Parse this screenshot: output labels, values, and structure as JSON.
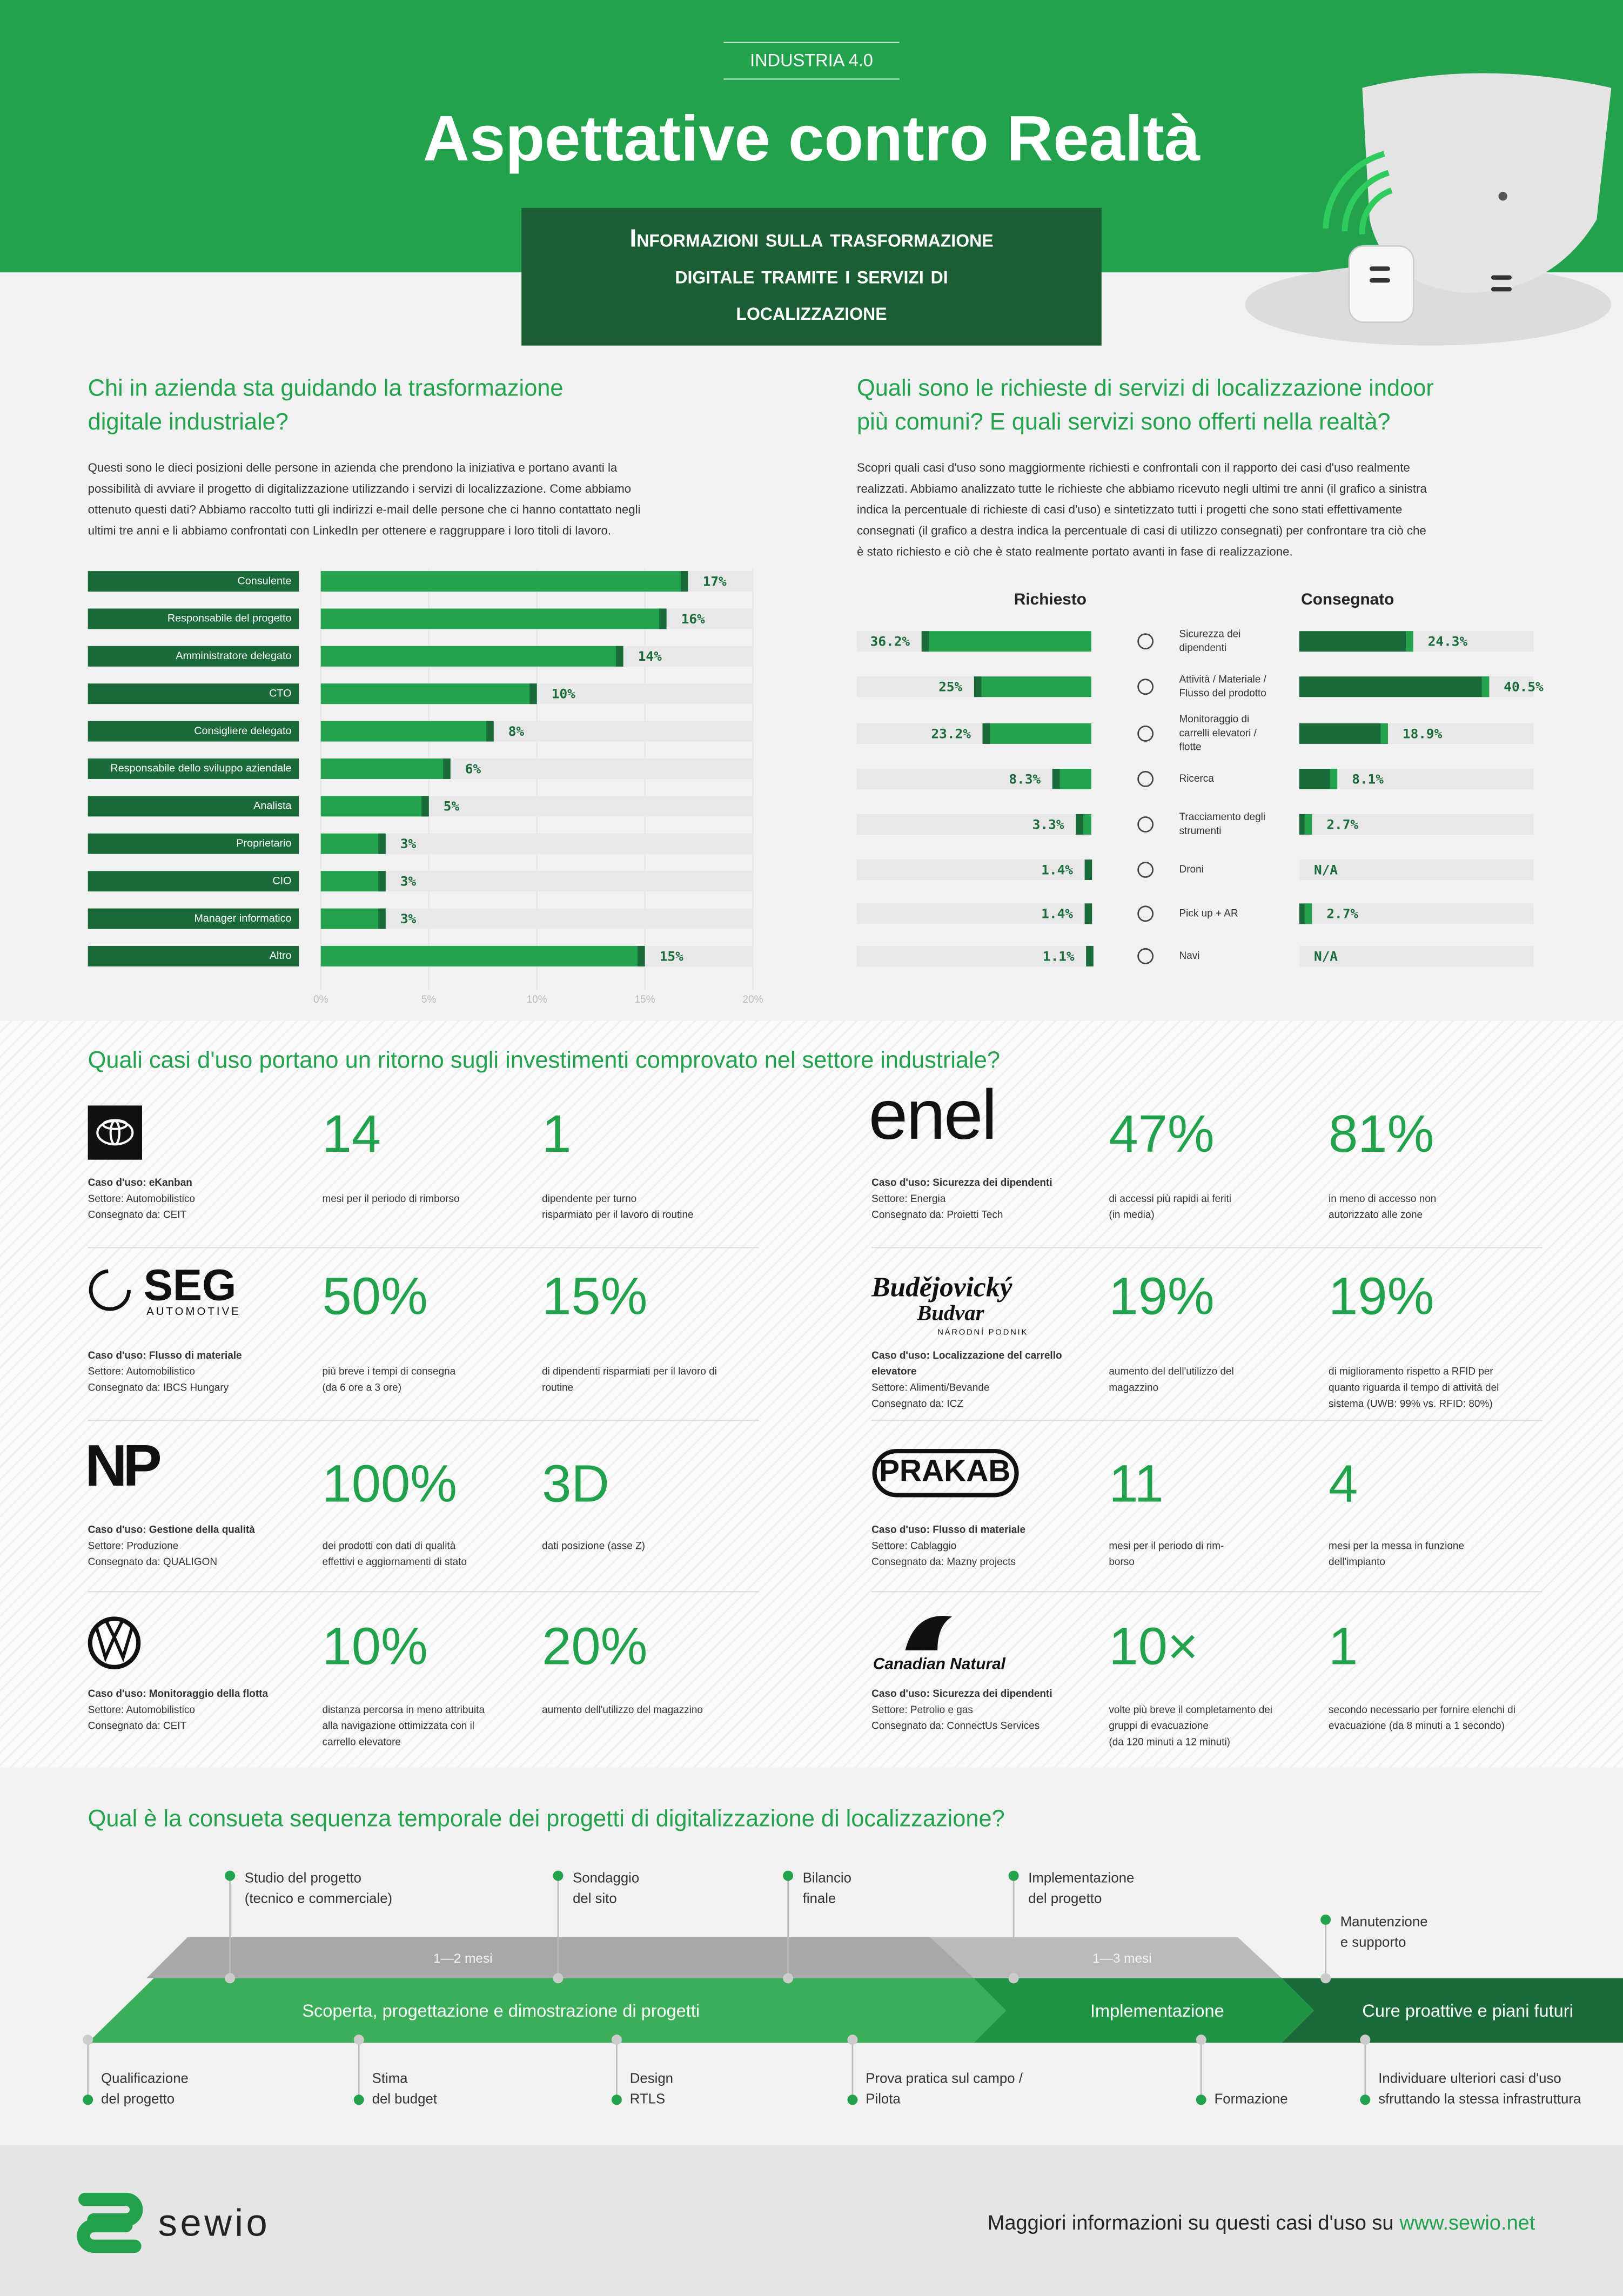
{
  "header": {
    "kicker": "INDUSTRIA 4.0",
    "title": "Aspettative contro Realtà",
    "subtitle": [
      "Informazioni sulla trasformazione",
      "digitale tramite i servizi di",
      "localizzazione"
    ]
  },
  "roles": {
    "title": [
      "Chi in azienda sta guidando la trasformazione",
      "digitale industriale?"
    ],
    "text": [
      "Questi sono le dieci posizioni delle persone in azienda che prendono la iniziativa e portano avanti la",
      "possibilità di avviare il progetto di digitalizzazione utilizzando i servizi di localizzazione. Come abbiamo",
      "ottenuto questi dati? Abbiamo raccolto tutti gli indirizzi e-mail delle persone che ci hanno contattato negli",
      "ultimi tre anni e li abbiamo confrontati con LinkedIn per ottenere e raggruppare i loro titoli di lavoro."
    ]
  },
  "use_cases": {
    "title": [
      "Quali sono le richieste di servizi di localizzazione indoor",
      "più comuni? E quali servizi sono offerti nella realtà?"
    ],
    "text": [
      "Scopri quali casi d'uso sono maggiormente richiesti e confrontali con il rapporto dei casi d'uso realmente",
      "realizzati. Abbiamo analizzato tutte le richieste che abbiamo ricevuto negli ultimi tre anni (il grafico a sinistra",
      "indica la percentuale di richieste di casi d'uso) e sintetizzato tutti i progetti che sono stati effettivamente",
      "consegnati (il grafico a destra indica la percentuale di casi di utilizzo consegnati) per confrontare tra ciò che",
      "è stato richiesto e ciò che è stato realmente portato avanti in fase di realizzazione."
    ]
  },
  "chart_data": [
    {
      "type": "bar",
      "categories": [
        "Consulente",
        "Responsabile del progetto",
        "Amministratore delegato",
        "CTO",
        "Consigliere delegato",
        "Responsabile dello sviluppo aziendale",
        "Analista",
        "Proprietario",
        "CIO",
        "Manager informatico",
        "Altro"
      ],
      "values": [
        17,
        16,
        14,
        10,
        8,
        6,
        5,
        3,
        3,
        3,
        15
      ],
      "value_labels": [
        "17%",
        "16%",
        "14%",
        "10%",
        "8%",
        "6%",
        "5%",
        "3%",
        "3%",
        "3%",
        "15%"
      ],
      "color": "#23a24d",
      "xlim": [
        0,
        20
      ],
      "xticks": [
        {
          "value": 0,
          "label": "0%"
        },
        {
          "value": 5,
          "label": "5%"
        },
        {
          "value": 10,
          "label": "10%"
        },
        {
          "value": 15,
          "label": "15%"
        },
        {
          "value": 20,
          "label": "20%"
        }
      ],
      "grid": true
    },
    {
      "type": "bar",
      "categories": [
        "Sicurezza dei dipendenti",
        "Attività / Materiale / Flusso del prodotto",
        "Monitoraggio di carrelli elevatori / flotte",
        "Ricerca",
        "Tracciamento degli strumenti",
        "Droni",
        "Pick up + AR",
        "Navi"
      ],
      "series": [
        {
          "name": "Richiesto",
          "color": "#23a24d",
          "values": [
            36.2,
            25,
            23.2,
            8.3,
            3.3,
            1.4,
            1.4,
            1.1
          ],
          "value_labels": [
            "36.2%",
            "25%",
            "23.2%",
            "8.3%",
            "3.3%",
            "1.4%",
            "1.4%",
            "1.1%"
          ]
        },
        {
          "name": "Consegnato",
          "color": "#1b6b3a",
          "values": [
            24.3,
            40.5,
            18.9,
            8.1,
            2.7,
            null,
            2.7,
            null
          ],
          "value_labels": [
            "24.3%",
            "40.5%",
            "18.9%",
            "8.1%",
            "2.7%",
            "N/A",
            "2.7%",
            "N/A"
          ]
        }
      ],
      "xlim": [
        0,
        50
      ]
    }
  ],
  "roi": {
    "title": "Quali casi d'uso portano un ritorno sugli investimenti comprovato nel settore industriale?",
    "cases": [
      {
        "case": [
          "Caso d'uso: eKanban"
        ],
        "sector": "Settore: Automobilistico",
        "delivered_by": "Consegnato da: CEIT",
        "stats": [
          {
            "value": "14",
            "text": [
              "mesi per il periodo di rimborso"
            ]
          },
          {
            "value": "1",
            "text": [
              "dipendente per turno",
              "risparmiato per il lavoro di routine"
            ]
          }
        ]
      },
      {
        "logo": [
          "SEG",
          "AUTOMOTIVE"
        ],
        "case": [
          "Caso d'uso: Flusso di materiale"
        ],
        "sector": "Settore: Automobilistico",
        "delivered_by": "Consegnato da: IBCS Hungary",
        "stats": [
          {
            "value": "50%",
            "text": [
              "più breve i tempi di consegna",
              "(da 6 ore a 3 ore)"
            ]
          },
          {
            "value": "15%",
            "text": [
              "di dipendenti risparmiati per il lavoro di",
              "routine"
            ]
          }
        ]
      },
      {
        "logo": [
          "NP"
        ],
        "case": [
          "Caso d'uso: Gestione della qualità"
        ],
        "sector": "Settore: Produzione",
        "delivered_by": "Consegnato da: QUALIGON",
        "stats": [
          {
            "value": "100%",
            "text": [
              "dei prodotti con dati di qualità",
              "effettivi e aggiornamenti di stato"
            ]
          },
          {
            "value": "3D",
            "text": [
              "dati posizione (asse Z)"
            ]
          }
        ]
      },
      {
        "case": [
          "Caso d'uso: Monitoraggio della flotta"
        ],
        "sector": "Settore: Automobilistico",
        "delivered_by": "Consegnato da: CEIT",
        "stats": [
          {
            "value": "10%",
            "text": [
              "distanza percorsa in meno attribuita",
              "alla navigazione ottimizzata con il",
              "carrello elevatore"
            ]
          },
          {
            "value": "20%",
            "text": [
              "aumento dell'utilizzo del magazzino"
            ]
          }
        ]
      },
      {
        "logo": [
          "enel"
        ],
        "case": [
          "Caso d'uso: Sicurezza dei dipendenti"
        ],
        "sector": "Settore: Energia",
        "delivered_by": "Consegnato da: Proietti Tech",
        "stats": [
          {
            "value": "47%",
            "text": [
              "di accessi più rapidi ai feriti",
              "(in media)"
            ]
          },
          {
            "value": "81%",
            "text": [
              "in meno di accesso non",
              "autorizzato alle zone"
            ]
          }
        ]
      },
      {
        "logo": [
          "Budějovický",
          "Budvar",
          "NÁRODNÍ PODNIK"
        ],
        "case": [
          "Caso d'uso: Localizzazione del carrello",
          "elevatore"
        ],
        "sector": "Settore: Alimenti/Bevande",
        "delivered_by": "Consegnato da: ICZ",
        "stats": [
          {
            "value": "19%",
            "text": [
              "aumento del dell'utilizzo del",
              "magazzino"
            ]
          },
          {
            "value": "19%",
            "text": [
              "di miglioramento rispetto a RFID per",
              "quanto riguarda il tempo di attività del",
              "sistema (UWB: 99% vs. RFID: 80%)"
            ]
          }
        ]
      },
      {
        "logo": [
          "PRAKAB"
        ],
        "case": [
          "Caso d'uso: Flusso di materiale"
        ],
        "sector": "Settore: Cablaggio",
        "delivered_by": "Consegnato da: Mazny projects",
        "stats": [
          {
            "value": "11",
            "text": [
              "mesi per il periodo di rim-",
              "borso"
            ]
          },
          {
            "value": "4",
            "text": [
              "mesi per la messa in funzione",
              "dell'impianto"
            ]
          }
        ]
      },
      {
        "logo": [
          "Canadian Natural"
        ],
        "case": [
          "Caso d'uso: Sicurezza dei dipendenti"
        ],
        "sector": "Settore: Petrolio e gas",
        "delivered_by": "Consegnato da: ConnectUs Services",
        "stats": [
          {
            "value": "10×",
            "text": [
              "volte più breve il completamento dei",
              "gruppi di evacuazione",
              "(da 120 minuti a 12 minuti)"
            ]
          },
          {
            "value": "1",
            "text": [
              "secondo necessario per fornire elenchi di",
              "evacuazione (da 8 minuti a 1 secondo)"
            ]
          }
        ]
      }
    ]
  },
  "timeline": {
    "title": "Qual è la consueta sequenza temporale dei progetti di digitalizzazione di localizzazione?",
    "durations": [
      "1—2 mesi",
      "1—3 mesi"
    ],
    "phases": [
      "Scoperta, progettazione e dimostrazione di progetti",
      "Implementazione",
      "Cure proattive e piani futuri"
    ],
    "upper": [
      [
        "Studio del progetto",
        "(tecnico e commerciale)"
      ],
      [
        "Sondaggio",
        "del sito"
      ],
      [
        "Bilancio",
        "finale"
      ],
      [
        "Implementazione",
        "del progetto"
      ],
      [
        "Manutenzione",
        "e supporto"
      ]
    ],
    "lower": [
      [
        "Qualificazione",
        "del progetto"
      ],
      [
        "Stima",
        "del budget"
      ],
      [
        "Design",
        "RTLS"
      ],
      [
        "Prova pratica sul campo /",
        "Pilota"
      ],
      [
        "Formazione"
      ],
      [
        "Individuare ulteriori casi d'uso",
        "sfruttando la stessa infrastruttura"
      ]
    ]
  },
  "footer": {
    "brand": "sewio",
    "text": "Maggiori informazioni su questi casi d'uso su",
    "link": "www.sewio.net"
  }
}
